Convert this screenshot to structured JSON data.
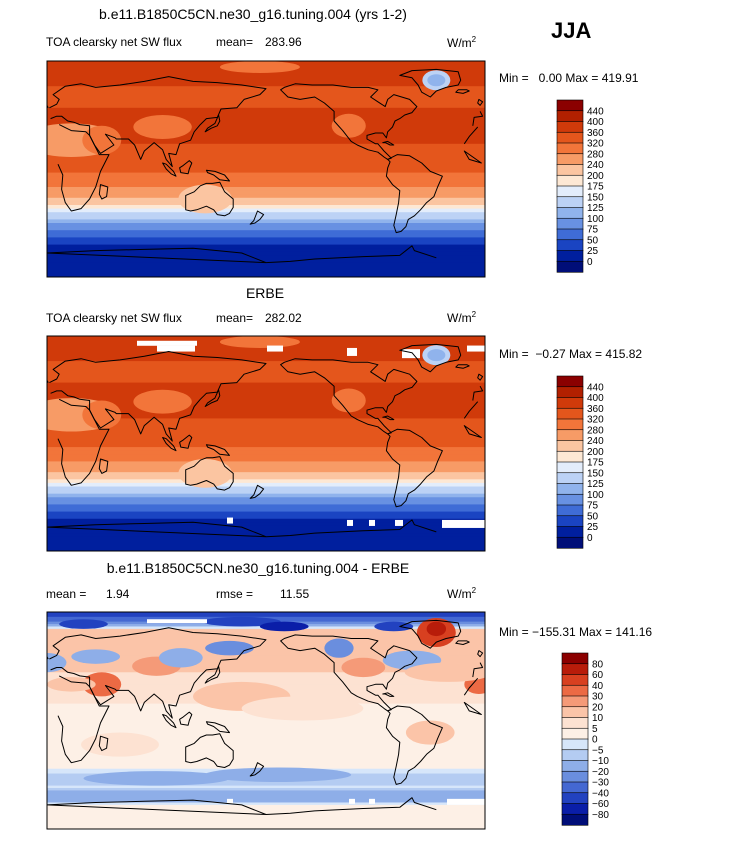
{
  "chart_data": {
    "season": "JJA",
    "units_base": "W/m",
    "units_exp": "2",
    "panels": [
      {
        "type": "heatmap",
        "title": "b.e11.B1850C5CN.ne30_g16.tuning.004 (yrs 1-2)",
        "field_label": "TOA clearsky net SW flux",
        "mean_label": "mean=",
        "mean_value": "283.96",
        "stats_text": "Min =   0.00 Max = 419.91",
        "min": 0.0,
        "max": 419.91,
        "kind": "abs",
        "colorbar_levels": [
          "440",
          "400",
          "360",
          "320",
          "280",
          "240",
          "200",
          "175",
          "150",
          "125",
          "100",
          "75",
          "50",
          "25",
          "0"
        ]
      },
      {
        "type": "heatmap",
        "title": "ERBE",
        "field_label": "TOA clearsky net SW flux",
        "mean_label": "mean=",
        "mean_value": "282.02",
        "stats_text": "Min =  −0.27 Max = 415.82",
        "min": -0.27,
        "max": 415.82,
        "kind": "obs",
        "colorbar_levels": [
          "440",
          "400",
          "360",
          "320",
          "280",
          "240",
          "200",
          "175",
          "150",
          "125",
          "100",
          "75",
          "50",
          "25",
          "0"
        ]
      },
      {
        "type": "heatmap",
        "title": "b.e11.B1850C5CN.ne30_g16.tuning.004 - ERBE",
        "mean_label": "mean =",
        "mean_value": "1.94",
        "rmse_label": "rmse =",
        "rmse_value": "11.55",
        "stats_text": "Min = −155.31 Max = 141.16",
        "min": -155.31,
        "max": 141.16,
        "kind": "diff",
        "colorbar_levels": [
          "80",
          "60",
          "40",
          "30",
          "20",
          "10",
          "5",
          "0",
          "−5",
          "−10",
          "−20",
          "−30",
          "−40",
          "−60",
          "−80"
        ]
      }
    ]
  },
  "colors": {
    "abs_bands": [
      "#8b0000",
      "#b22000",
      "#d03a0a",
      "#e4561c",
      "#f2753a",
      "#f79b66",
      "#fbc5a1",
      "#fde8d4",
      "#e3edfb",
      "#bcd2f5",
      "#90b3ec",
      "#6891e2",
      "#3f6cd6",
      "#1a44c2",
      "#001f9e",
      "#000e78"
    ],
    "diff_bands": [
      "#8b0000",
      "#b81c0a",
      "#d84020",
      "#ec6a44",
      "#f59a78",
      "#fbc4a8",
      "#fde2d2",
      "#fdf0e6",
      "#d6e6fa",
      "#b4ccf2",
      "#8eaee8",
      "#6a8ede",
      "#4468d2",
      "#2242c0",
      "#0a1ea8",
      "#000e78"
    ]
  }
}
